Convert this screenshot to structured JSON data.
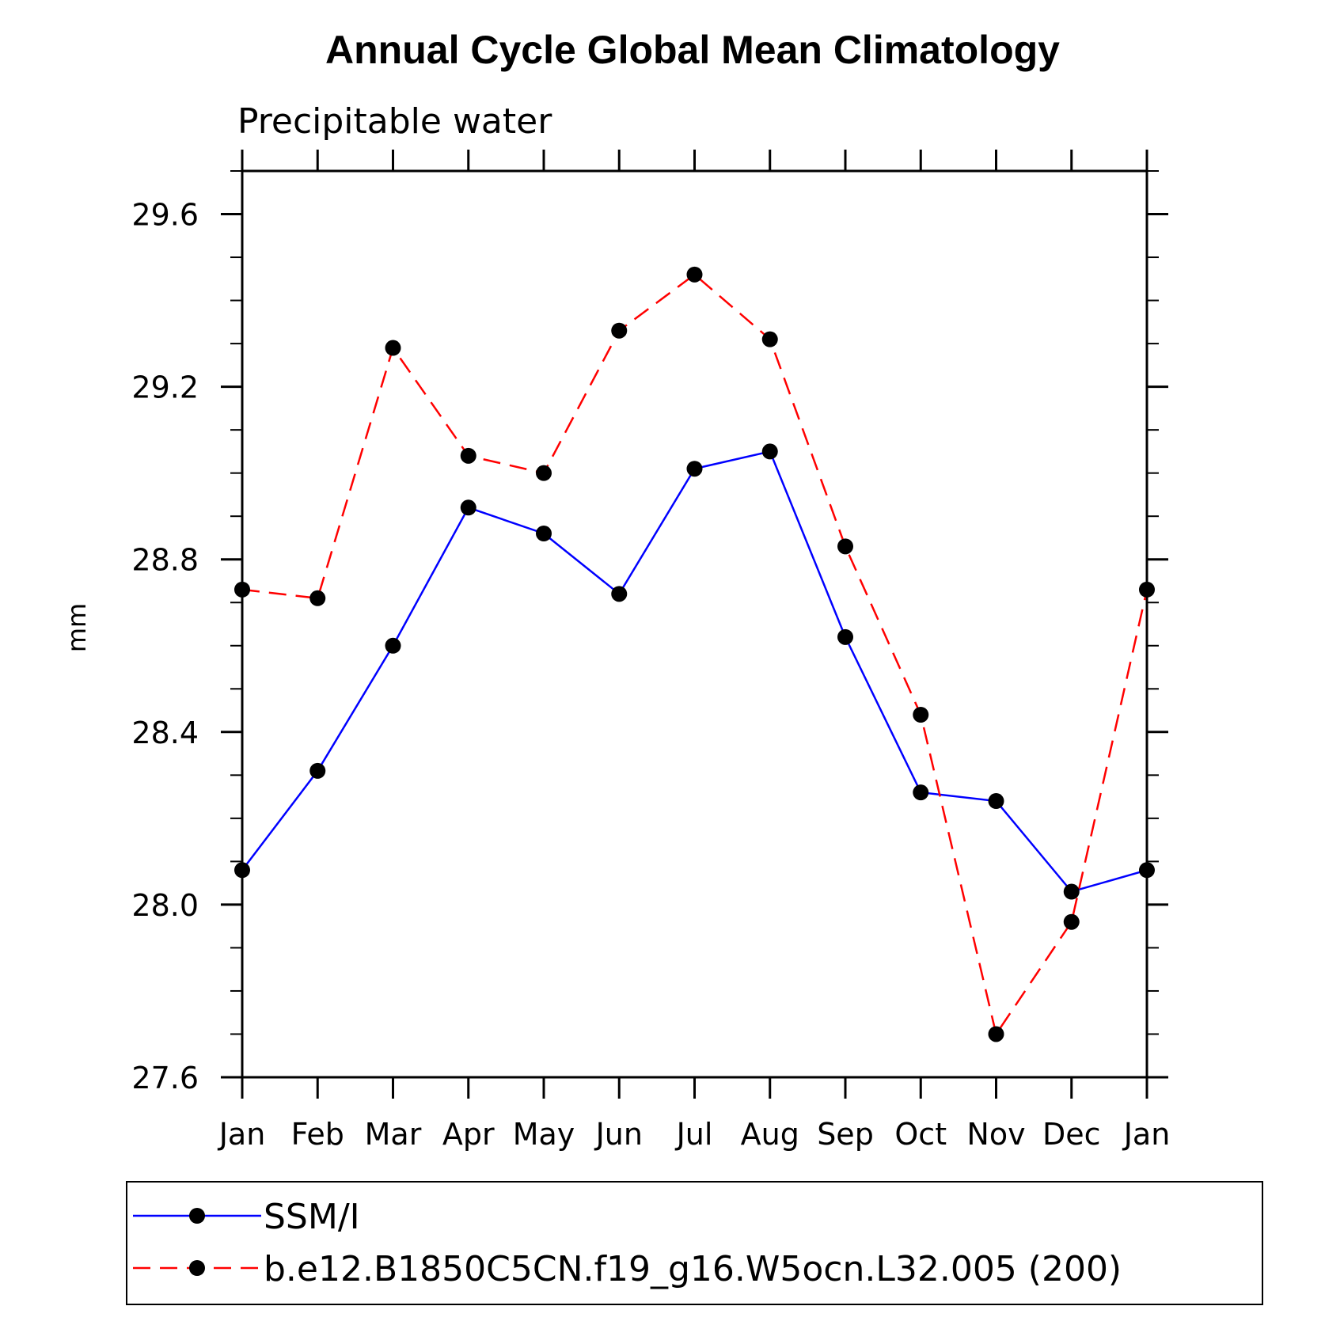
{
  "chart_data": {
    "type": "line",
    "title": "Annual Cycle Global Mean Climatology",
    "subtitle": "Precipitable water",
    "xlabel": "",
    "ylabel": "mm",
    "categories": [
      "Jan",
      "Feb",
      "Mar",
      "Apr",
      "May",
      "Jun",
      "Jul",
      "Aug",
      "Sep",
      "Oct",
      "Nov",
      "Dec",
      "Jan"
    ],
    "ylim": [
      27.6,
      29.7
    ],
    "yticks": [
      "27.6",
      "28.0",
      "28.4",
      "28.8",
      "29.2",
      "29.6"
    ],
    "ytick_values": [
      27.6,
      28.0,
      28.4,
      28.8,
      29.2,
      29.6
    ],
    "series": [
      {
        "name": "SSM/I",
        "color": "#0000ff",
        "dashed": false,
        "values": [
          28.08,
          28.31,
          28.6,
          28.92,
          28.86,
          28.72,
          29.01,
          29.05,
          28.62,
          28.26,
          28.24,
          28.03,
          28.08
        ]
      },
      {
        "name": "b.e12.B1850C5CN.f19_g16.W5ocn.L32.005 (200)",
        "color": "#ff0000",
        "dashed": true,
        "values": [
          28.73,
          28.71,
          29.29,
          29.04,
          29.0,
          29.33,
          29.46,
          29.31,
          28.83,
          28.44,
          27.7,
          27.96,
          28.73
        ]
      }
    ],
    "legend_position": "bottom",
    "grid": false
  }
}
